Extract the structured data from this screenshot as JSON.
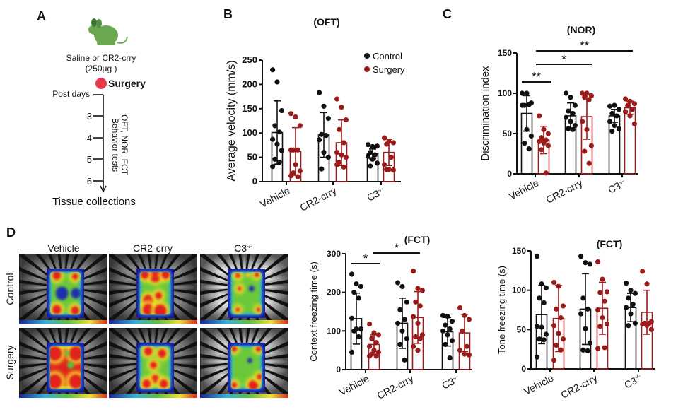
{
  "panel_letters": {
    "a": "A",
    "b": "B",
    "c": "C",
    "d": "D"
  },
  "panel_a": {
    "injection_line1": "Saline or CR2-crry",
    "injection_line2": "(250μg )",
    "surgery_label": "Surgery",
    "post_days_label": "Post days",
    "days": [
      "3",
      "4",
      "5",
      "6"
    ],
    "tests_line1": "OFT, NOR, FCT",
    "tests_line2": "Behavior tests",
    "end_label": "Tissue collections",
    "mouse_icon": "mouse-icon",
    "colors": {
      "mouse": "#6aa84f",
      "surgery_dot": "#e8394a"
    }
  },
  "panel_d": {
    "columns": [
      "Vehicle",
      "CR2-crry",
      "C3-/-"
    ],
    "rows": [
      "Control",
      "Surgery"
    ]
  },
  "legend": {
    "items": [
      {
        "label": "Control",
        "color": "#111111"
      },
      {
        "label": "Surgery",
        "color": "#9b1b1b"
      }
    ]
  },
  "chart_data": [
    {
      "type": "bar",
      "title": "(OFT)",
      "ylabel": "Average velocity (mm/s)",
      "ylim": [
        0,
        250
      ],
      "yticks": [
        0,
        50,
        100,
        150,
        200,
        250
      ],
      "categories": [
        "Vehicle",
        "CR2-crry",
        "C3-/-"
      ],
      "series": [
        {
          "name": "Control",
          "color": "#111111",
          "means": [
            101,
            96,
            57
          ],
          "sd": [
            65,
            46,
            10
          ],
          "points": [
            [
              230,
              205,
              146,
              115,
              102,
              87,
              77,
              64,
              46,
              40,
              31
            ],
            [
              183,
              155,
              130,
              97,
              95,
              86,
              60,
              50,
              26
            ],
            [
              76,
              72,
              73,
              60,
              55,
              52,
              46,
              38,
              32
            ]
          ]
        },
        {
          "name": "Surgery",
          "color": "#9b1b1b",
          "means": [
            62,
            80,
            60
          ],
          "sd": [
            49,
            47,
            27
          ],
          "points": [
            [
              140,
              133,
              115,
              65,
              65,
              65,
              35,
              22,
              18,
              10,
              12
            ],
            [
              170,
              153,
              127,
              107,
              80,
              60,
              55,
              50,
              40,
              30,
              35
            ],
            [
              90,
              83,
              80,
              77,
              50,
              35,
              25,
              24,
              25
            ]
          ]
        }
      ],
      "significance": []
    },
    {
      "type": "bar",
      "title": "(NOR)",
      "ylabel": "Discrimination index",
      "ylim": [
        0,
        150
      ],
      "yticks": [
        0,
        50,
        100,
        150
      ],
      "categories": [
        "Vehicle",
        "CR2-crry",
        "C3-/-"
      ],
      "series": [
        {
          "name": "Control",
          "color": "#111111",
          "means": [
            75,
            72,
            72
          ],
          "sd": [
            22,
            16,
            8
          ],
          "points": [
            [
              100,
              100,
              88,
              85,
              86,
              85,
              55,
              47,
              38,
              31
            ],
            [
              100,
              95,
              85,
              78,
              75,
              70,
              65,
              60,
              56,
              55
            ],
            [
              84,
              85,
              80,
              75,
              72,
              65,
              60,
              56,
              53
            ]
          ]
        },
        {
          "name": "Surgery",
          "color": "#9b1b1b",
          "means": [
            42,
            71,
            82
          ],
          "sd": [
            17,
            28,
            8
          ],
          "points": [
            [
              72,
              55,
              50,
              45,
              42,
              40,
              38,
              35,
              30,
              1
            ],
            [
              100,
              100,
              97,
              95,
              92,
              65,
              55,
              35,
              28,
              13
            ],
            [
              93,
              90,
              87,
              85,
              80,
              77,
              72,
              62
            ]
          ]
        }
      ],
      "significance": [
        {
          "label": "**",
          "a": [
            0,
            0
          ],
          "b": [
            0,
            1
          ]
        },
        {
          "label": "*",
          "a": [
            0,
            1
          ],
          "b": [
            1,
            1
          ]
        },
        {
          "label": "**",
          "a": [
            0,
            1
          ],
          "b": [
            2,
            1
          ]
        }
      ]
    },
    {
      "type": "bar",
      "title": "(FCT)",
      "ylabel": "Context freezing time (s)",
      "ylim": [
        0,
        300
      ],
      "yticks": [
        0,
        100,
        200,
        300
      ],
      "categories": [
        "Vehicle",
        "CR2-crry",
        "C3-/-"
      ],
      "series": [
        {
          "name": "Control",
          "color": "#111111",
          "means": [
            132,
            120,
            98
          ],
          "sd": [
            66,
            65,
            37
          ],
          "points": [
            [
              247,
              222,
              215,
              200,
              185,
              133,
              105,
              105,
              100,
              85,
              45
            ],
            [
              225,
              215,
              175,
              155,
              130,
              120,
              100,
              80,
              65,
              25
            ],
            [
              140,
              138,
              125,
              115,
              105,
              100,
              90,
              75,
              65,
              30
            ]
          ]
        },
        {
          "name": "Surgery",
          "color": "#9b1b1b",
          "means": [
            65,
            135,
            95
          ],
          "sd": [
            25,
            67,
            48
          ],
          "points": [
            [
              118,
              95,
              90,
              80,
              70,
              60,
              50,
              45,
              40,
              35,
              35
            ],
            [
              255,
              210,
              205,
              175,
              165,
              137,
              120,
              90,
              85,
              80,
              60,
              50
            ],
            [
              160,
              140,
              130,
              100,
              60,
              50,
              40,
              38
            ]
          ]
        }
      ],
      "significance": [
        {
          "label": "*",
          "a": [
            0,
            0
          ],
          "b": [
            0,
            1
          ]
        },
        {
          "label": "*",
          "a": [
            0,
            1
          ],
          "b": [
            1,
            1
          ]
        }
      ]
    },
    {
      "type": "bar",
      "title": "(FCT)",
      "ylabel": "Tone freezing time (s)",
      "ylim": [
        0,
        150
      ],
      "yticks": [
        0,
        50,
        100,
        150
      ],
      "categories": [
        "Vehicle",
        "CR2-crry",
        "C3-/-"
      ],
      "series": [
        {
          "name": "Control",
          "color": "#111111",
          "means": [
            69,
            76,
            78
          ],
          "sd": [
            37,
            45,
            18
          ],
          "points": [
            [
              143,
              108,
              103,
              90,
              84,
              54,
              53,
              44,
              38,
              37,
              15
            ],
            [
              143,
              135,
              133,
              90,
              76,
              70,
              51,
              33,
              24,
              23
            ],
            [
              109,
              100,
              96,
              90,
              82,
              78,
              70,
              58,
              55
            ]
          ]
        },
        {
          "name": "Surgery",
          "color": "#9b1b1b",
          "means": [
            64,
            77,
            72
          ],
          "sd": [
            42,
            33,
            28
          ],
          "points": [
            [
              110,
              105,
              80,
              76,
              65,
              55,
              45,
              38,
              30,
              24,
              11
            ],
            [
              136,
              114,
              98,
              97,
              86,
              75,
              65,
              57,
              54,
              27,
              26
            ],
            [
              124,
              108,
              60,
              58,
              58,
              57,
              55,
              50
            ]
          ]
        }
      ],
      "significance": []
    }
  ]
}
